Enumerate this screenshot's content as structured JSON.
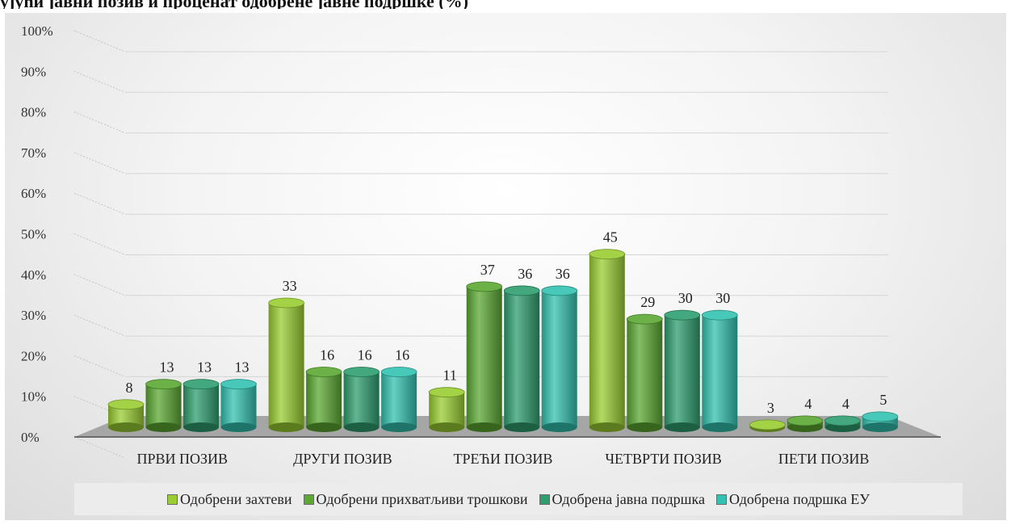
{
  "title": "ујући јавни позив и проценат одобрене јавне подршке (%)",
  "chart_data": {
    "type": "bar",
    "categories": [
      "ПРВИ ПОЗИВ",
      "ДРУГИ ПОЗИВ",
      "ТРЕЋИ ПОЗИВ",
      "ЧЕТВРТИ ПОЗИВ",
      "ПЕТИ ПОЗИВ"
    ],
    "series": [
      {
        "name": "Одобрени захтеви",
        "color": "#9ACD32",
        "values": [
          8,
          33,
          11,
          45,
          3
        ]
      },
      {
        "name": "Одобрени прихватљиви трошкови",
        "color": "#5BA832",
        "values": [
          13,
          16,
          37,
          29,
          4
        ]
      },
      {
        "name": "Одобрена јавна подршка",
        "color": "#2E9E6E",
        "values": [
          13,
          16,
          36,
          30,
          4
        ]
      },
      {
        "name": "Одобрена подршка ЕУ",
        "color": "#33C2B0",
        "values": [
          13,
          16,
          36,
          30,
          5
        ]
      }
    ],
    "y_ticks": [
      "0%",
      "10%",
      "20%",
      "30%",
      "40%",
      "50%",
      "60%",
      "70%",
      "80%",
      "90%",
      "100%"
    ],
    "ylim": [
      0,
      100
    ],
    "xlabel": "",
    "ylabel": "",
    "grid": true,
    "legend_position": "bottom",
    "style": "3d-cylinder"
  }
}
